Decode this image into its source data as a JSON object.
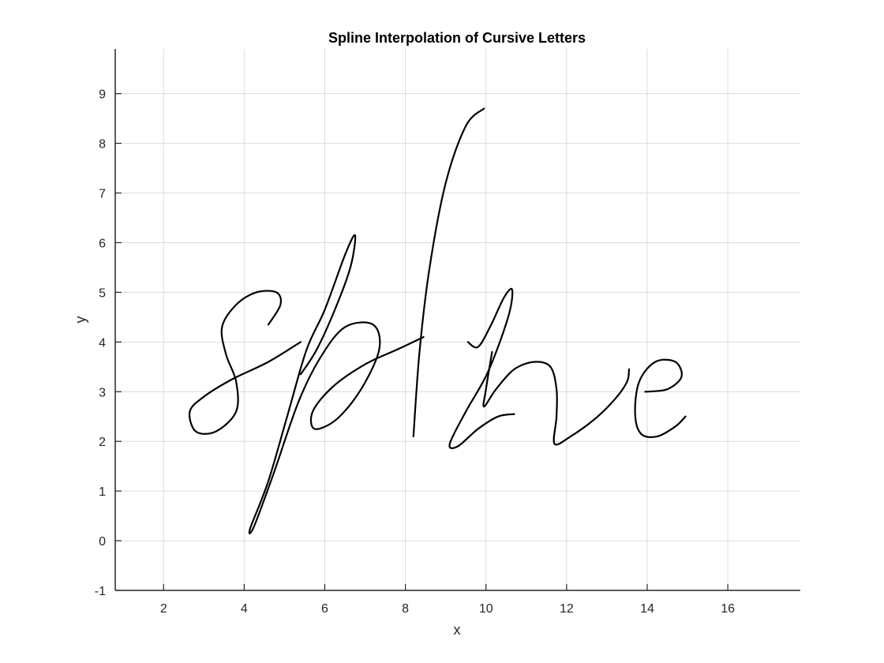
{
  "chart_data": {
    "type": "line",
    "title": "Spline Interpolation of Cursive Letters",
    "xlabel": "x",
    "ylabel": "y",
    "xlim": [
      0.8,
      17.8
    ],
    "ylim": [
      -1,
      9.9
    ],
    "xticks": [
      2,
      4,
      6,
      8,
      10,
      12,
      14,
      16
    ],
    "yticks": [
      -1,
      0,
      1,
      2,
      3,
      4,
      5,
      6,
      7,
      8,
      9
    ],
    "grid": true,
    "line_color": "#000000",
    "series": [
      {
        "points": [
          [
            4.6,
            4.35
          ],
          [
            4.9,
            4.75
          ],
          [
            4.8,
            5.0
          ],
          [
            4.3,
            5.0
          ],
          [
            3.8,
            4.75
          ],
          [
            3.45,
            4.3
          ],
          [
            3.55,
            3.75
          ],
          [
            3.8,
            3.2
          ],
          [
            3.8,
            2.6
          ],
          [
            3.3,
            2.2
          ],
          [
            2.8,
            2.2
          ],
          [
            2.65,
            2.6
          ],
          [
            3.0,
            2.9
          ],
          [
            3.7,
            3.25
          ],
          [
            4.6,
            3.6
          ],
          [
            5.4,
            4.0
          ]
        ]
      },
      {
        "points": [
          [
            5.4,
            3.35
          ],
          [
            5.8,
            3.85
          ],
          [
            6.3,
            4.75
          ],
          [
            6.65,
            5.55
          ],
          [
            6.75,
            6.15
          ],
          [
            6.5,
            5.75
          ],
          [
            6.0,
            4.65
          ],
          [
            5.55,
            3.85
          ],
          [
            5.1,
            2.6
          ],
          [
            4.6,
            1.2
          ],
          [
            4.15,
            0.25
          ],
          [
            4.25,
            0.3
          ],
          [
            4.75,
            1.4
          ],
          [
            5.35,
            2.8
          ],
          [
            5.9,
            3.7
          ],
          [
            6.5,
            4.3
          ],
          [
            7.2,
            4.35
          ],
          [
            7.35,
            3.85
          ],
          [
            6.9,
            3.05
          ],
          [
            6.3,
            2.45
          ],
          [
            5.75,
            2.25
          ],
          [
            5.7,
            2.6
          ],
          [
            6.2,
            3.1
          ],
          [
            7.0,
            3.55
          ],
          [
            7.8,
            3.85
          ],
          [
            8.45,
            4.1
          ]
        ]
      },
      {
        "points": [
          [
            8.2,
            2.1
          ],
          [
            8.35,
            3.8
          ],
          [
            8.6,
            5.5
          ],
          [
            9.0,
            7.2
          ],
          [
            9.5,
            8.35
          ],
          [
            9.95,
            8.7
          ]
        ]
      },
      {
        "points": [
          [
            9.55,
            4.0
          ],
          [
            9.8,
            3.9
          ],
          [
            10.1,
            4.3
          ],
          [
            10.45,
            4.9
          ],
          [
            10.65,
            5.05
          ],
          [
            10.55,
            4.5
          ],
          [
            10.05,
            3.4
          ],
          [
            9.5,
            2.6
          ],
          [
            9.1,
            1.95
          ],
          [
            9.3,
            1.9
          ],
          [
            9.8,
            2.25
          ],
          [
            10.3,
            2.5
          ],
          [
            10.7,
            2.55
          ]
        ]
      },
      {
        "points": [
          [
            10.15,
            3.8
          ],
          [
            10.0,
            3.05
          ],
          [
            9.95,
            2.7
          ],
          [
            10.25,
            3.05
          ],
          [
            10.7,
            3.45
          ],
          [
            11.2,
            3.6
          ],
          [
            11.6,
            3.5
          ],
          [
            11.75,
            3.05
          ],
          [
            11.75,
            2.5
          ],
          [
            11.7,
            1.95
          ],
          [
            12.1,
            2.1
          ],
          [
            12.7,
            2.45
          ],
          [
            13.2,
            2.85
          ],
          [
            13.5,
            3.2
          ],
          [
            13.55,
            3.45
          ]
        ]
      },
      {
        "points": [
          [
            13.95,
            3.0
          ],
          [
            14.5,
            3.05
          ],
          [
            14.85,
            3.3
          ],
          [
            14.7,
            3.6
          ],
          [
            14.2,
            3.6
          ],
          [
            13.8,
            3.2
          ],
          [
            13.7,
            2.55
          ],
          [
            13.85,
            2.15
          ],
          [
            14.25,
            2.1
          ],
          [
            14.7,
            2.3
          ],
          [
            14.95,
            2.5
          ]
        ]
      }
    ]
  }
}
